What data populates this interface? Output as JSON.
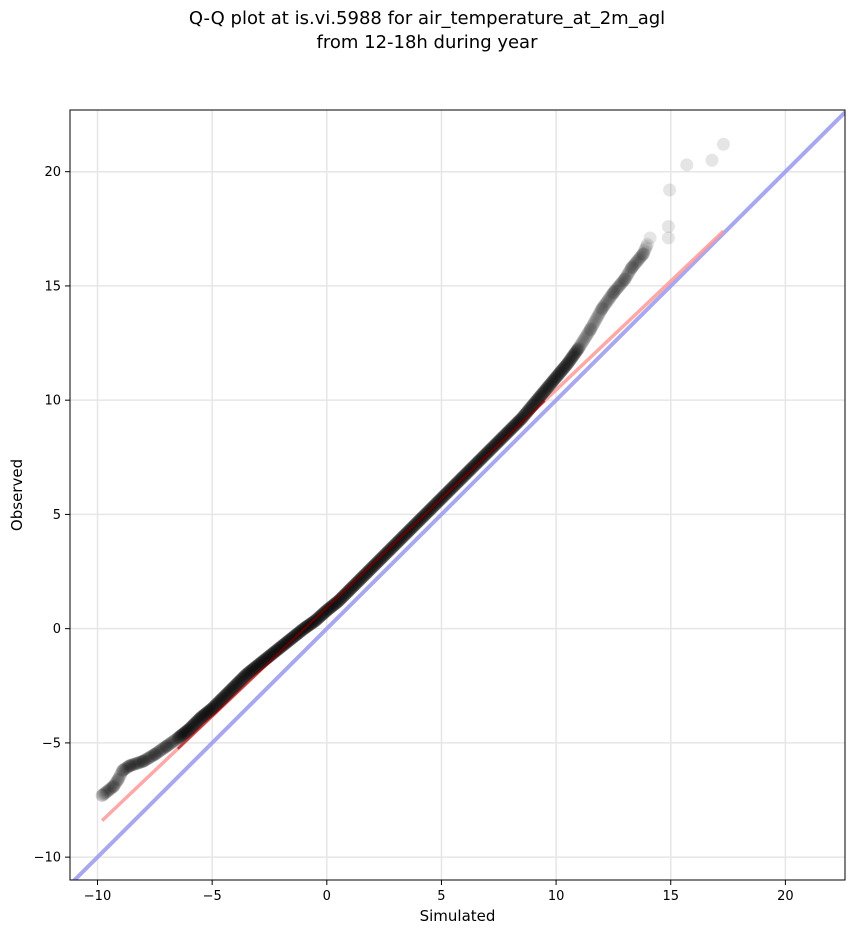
{
  "chart_data": {
    "type": "scatter",
    "title": "Q-Q plot at is.vi.5988 for air_temperature_at_2m_agl",
    "subtitle": "from 12-18h during year",
    "xlabel": "Simulated",
    "ylabel": "Observed",
    "xlim": [
      -11.2,
      22.6
    ],
    "ylim": [
      -11.0,
      22.7
    ],
    "xticks": [
      -10,
      -5,
      0,
      5,
      10,
      15,
      20
    ],
    "yticks": [
      -10,
      -5,
      0,
      5,
      10,
      15,
      20
    ],
    "xtick_labels": [
      "−10",
      "−5",
      "0",
      "5",
      "10",
      "15",
      "20"
    ],
    "ytick_labels": [
      "−10",
      "−5",
      "0",
      "5",
      "10",
      "15",
      "20"
    ],
    "grid": true,
    "quantile_curve": [
      [
        -9.8,
        -7.3
      ],
      [
        -9.3,
        -6.9
      ],
      [
        -9.1,
        -6.6
      ],
      [
        -8.9,
        -6.2
      ],
      [
        -8.6,
        -6.0
      ],
      [
        -8.0,
        -5.8
      ],
      [
        -7.5,
        -5.5
      ],
      [
        -7.0,
        -5.15
      ],
      [
        -6.5,
        -4.8
      ],
      [
        -6.0,
        -4.4
      ],
      [
        -5.5,
        -3.9
      ],
      [
        -5.0,
        -3.5
      ],
      [
        -4.5,
        -3.0
      ],
      [
        -4.0,
        -2.5
      ],
      [
        -3.5,
        -2.0
      ],
      [
        -3.0,
        -1.6
      ],
      [
        -2.5,
        -1.2
      ],
      [
        -2.0,
        -0.8
      ],
      [
        -1.5,
        -0.4
      ],
      [
        -1.0,
        0.0
      ],
      [
        -0.5,
        0.35
      ],
      [
        0.0,
        0.8
      ],
      [
        0.5,
        1.2
      ],
      [
        1.0,
        1.7
      ],
      [
        1.5,
        2.2
      ],
      [
        2.0,
        2.7
      ],
      [
        2.5,
        3.2
      ],
      [
        3.0,
        3.7
      ],
      [
        3.5,
        4.2
      ],
      [
        4.0,
        4.7
      ],
      [
        4.5,
        5.2
      ],
      [
        5.0,
        5.7
      ],
      [
        5.5,
        6.2
      ],
      [
        6.0,
        6.7
      ],
      [
        6.5,
        7.2
      ],
      [
        7.0,
        7.7
      ],
      [
        7.5,
        8.2
      ],
      [
        8.0,
        8.7
      ],
      [
        8.5,
        9.2
      ],
      [
        9.0,
        9.8
      ],
      [
        9.5,
        10.4
      ],
      [
        10.0,
        11.0
      ],
      [
        10.5,
        11.6
      ],
      [
        11.0,
        12.3
      ],
      [
        11.5,
        13.1
      ],
      [
        12.0,
        14.0
      ],
      [
        12.5,
        14.7
      ],
      [
        13.0,
        15.3
      ],
      [
        13.3,
        15.8
      ],
      [
        13.8,
        16.4
      ],
      [
        14.1,
        17.1
      ],
      [
        14.9,
        17.1
      ],
      [
        14.9,
        17.6
      ],
      [
        14.95,
        19.2
      ],
      [
        15.7,
        20.3
      ],
      [
        16.8,
        20.5
      ],
      [
        17.3,
        21.2
      ]
    ],
    "dark_range": [
      -6.5,
      11.0
    ],
    "lines": [
      {
        "kind": "identity",
        "color": "#9999ee",
        "from": [
          -11.2,
          -11.2
        ],
        "to": [
          22.6,
          22.6
        ]
      },
      {
        "kind": "fit",
        "color": "#ff9999",
        "from": [
          -9.8,
          -8.4
        ],
        "to": [
          17.3,
          17.4
        ]
      }
    ],
    "point_color": "#000000",
    "fit_inner_color": "#880000"
  }
}
